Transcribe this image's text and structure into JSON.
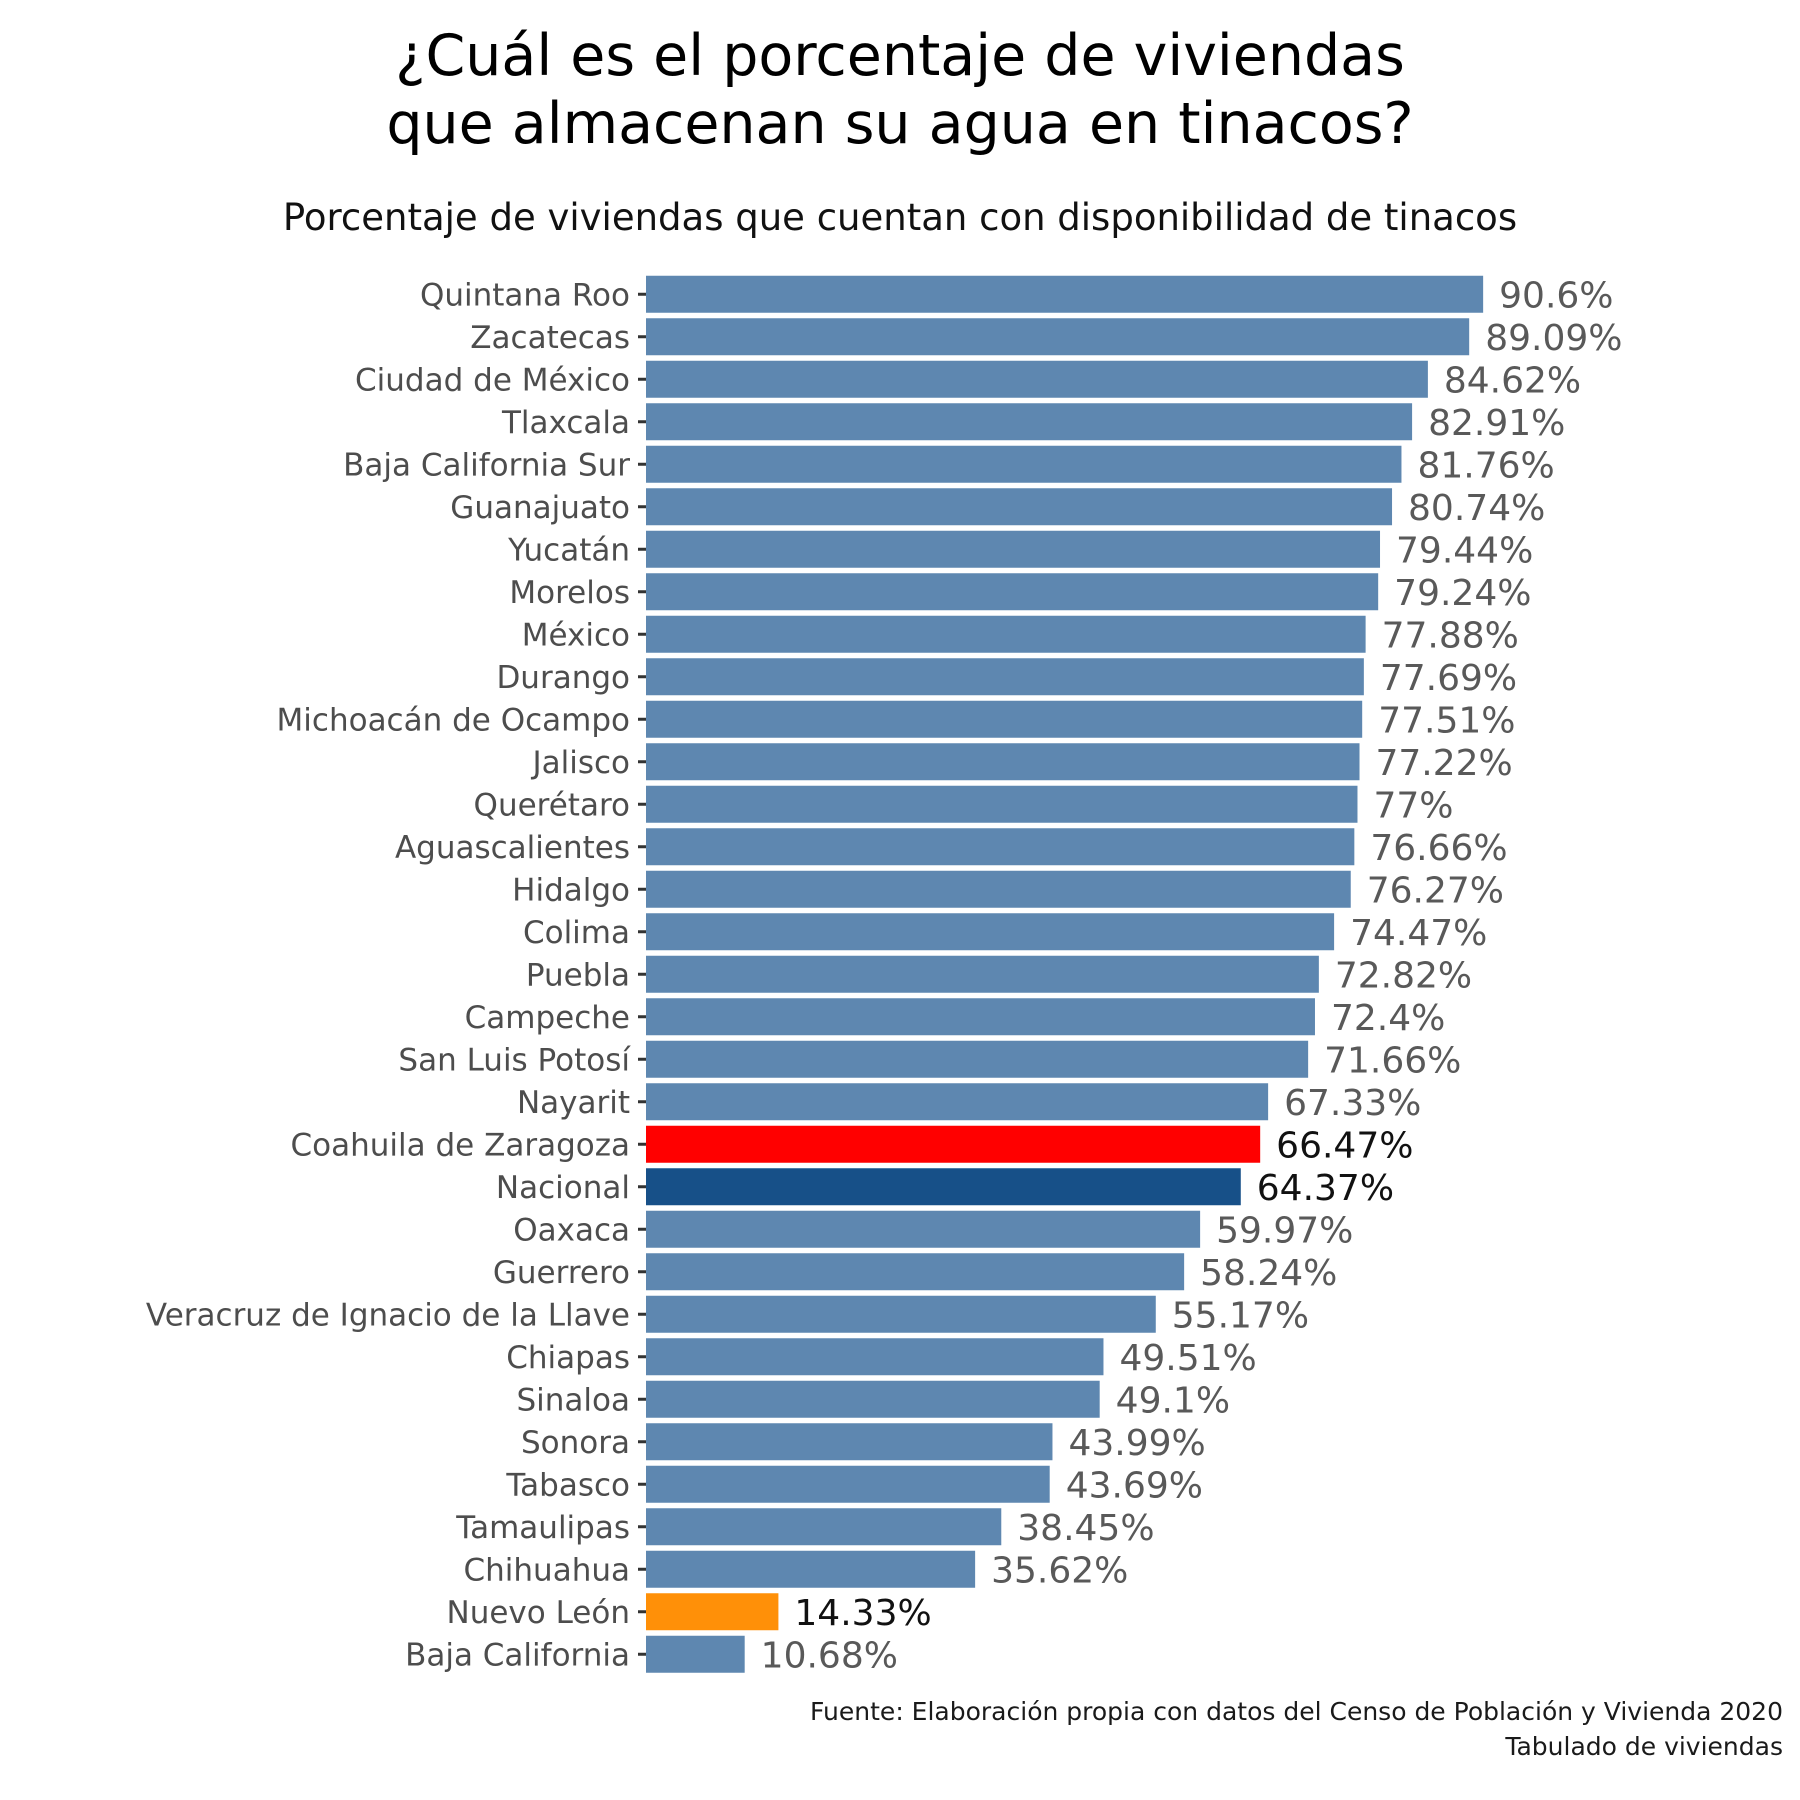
{
  "chart_data": {
    "type": "bar",
    "orientation": "horizontal",
    "title": "¿Cuál es el porcentaje de viviendas\nque almacenan su agua en tinacos?",
    "subtitle": "Porcentaje de viviendas que cuentan con disponibilidad de tinacos",
    "xlabel": "",
    "ylabel": "",
    "xlim": [
      0,
      100
    ],
    "grid": false,
    "legend": "none",
    "value_suffix": "%",
    "caption": "Fuente: Elaboración propia con datos del Censo de Población y Vivienda 2020\nTabulado de viviendas",
    "categories": [
      "Quintana Roo",
      "Zacatecas",
      "Ciudad de México",
      "Tlaxcala",
      "Baja California Sur",
      "Guanajuato",
      "Yucatán",
      "Morelos",
      "México",
      "Durango",
      "Michoacán de Ocampo",
      "Jalisco",
      "Querétaro",
      "Aguascalientes",
      "Hidalgo",
      "Colima",
      "Puebla",
      "Campeche",
      "San Luis Potosí",
      "Nayarit",
      "Coahuila de Zaragoza",
      "Nacional",
      "Oaxaca",
      "Guerrero",
      "Veracruz de Ignacio de la Llave",
      "Chiapas",
      "Sinaloa",
      "Sonora",
      "Tabasco",
      "Tamaulipas",
      "Chihuahua",
      "Nuevo León",
      "Baja California"
    ],
    "values": [
      90.6,
      89.09,
      84.62,
      82.91,
      81.76,
      80.74,
      79.44,
      79.24,
      77.88,
      77.69,
      77.51,
      77.22,
      77,
      76.66,
      76.27,
      74.47,
      72.82,
      72.4,
      71.66,
      67.33,
      66.47,
      64.37,
      59.97,
      58.24,
      55.17,
      49.51,
      49.1,
      43.99,
      43.69,
      38.45,
      35.62,
      14.33,
      10.68
    ],
    "colors": {
      "default": "#5e87b0",
      "highlight": {
        "Coahuila de Zaragoza": "#ff0000",
        "Nacional": "#175088",
        "Nuevo León": "#ff9008"
      }
    }
  }
}
